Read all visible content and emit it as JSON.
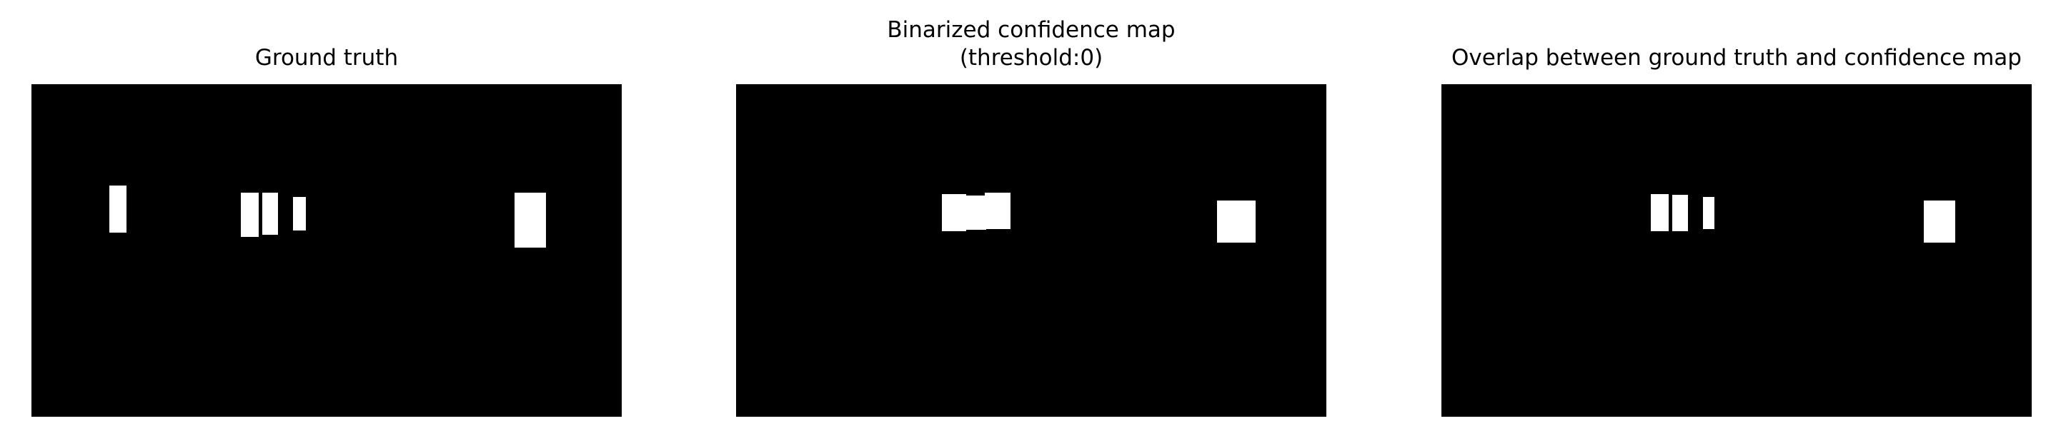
{
  "panels": [
    {
      "title": "Ground truth",
      "image": "binary mask: white rectangles on black background"
    },
    {
      "title": "Binarized confidence map\n(threshold:0)",
      "image": "binary mask: white rectangles on black background"
    },
    {
      "title": "Overlap between ground truth and confidence map",
      "image": "binary mask: white rectangles on black background"
    }
  ]
}
